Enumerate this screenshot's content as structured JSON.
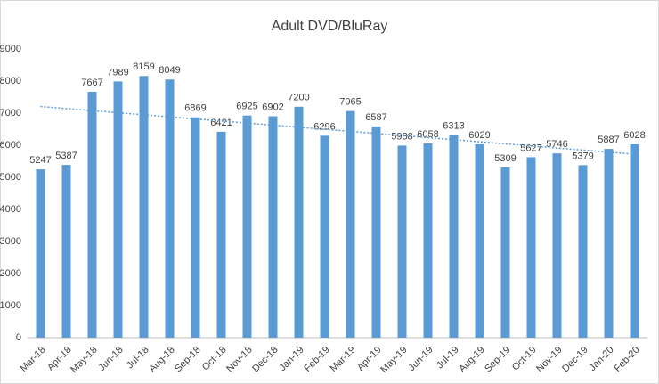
{
  "chart_data": {
    "type": "bar",
    "title": "Adult DVD/BluRay",
    "categories": [
      "Mar-18",
      "Apr-18",
      "May-18",
      "Jun-18",
      "Jul-18",
      "Aug-18",
      "Sep-18",
      "Oct-18",
      "Nov-18",
      "Dec-18",
      "Jan-19",
      "Feb-19",
      "Mar-19",
      "Apr-19",
      "May-19",
      "Jun-19",
      "Jul-19",
      "Aug-19",
      "Sep-19",
      "Oct-19",
      "Nov-19",
      "Dec-19",
      "Jan-20",
      "Feb-20"
    ],
    "values": [
      5247,
      5387,
      7667,
      7989,
      8159,
      8049,
      6869,
      6421,
      6925,
      6902,
      7200,
      6296,
      7065,
      6587,
      5988,
      6058,
      6313,
      6029,
      5309,
      5627,
      5746,
      5379,
      5887,
      6028
    ],
    "color": "#5b9bd5",
    "trendline": "linear",
    "trendline_color": "#5b9bd5",
    "ylim": [
      0,
      9000
    ],
    "yticks": [
      0,
      1000,
      2000,
      3000,
      4000,
      5000,
      6000,
      7000,
      8000,
      9000
    ],
    "grid": false,
    "data_labels": true
  }
}
